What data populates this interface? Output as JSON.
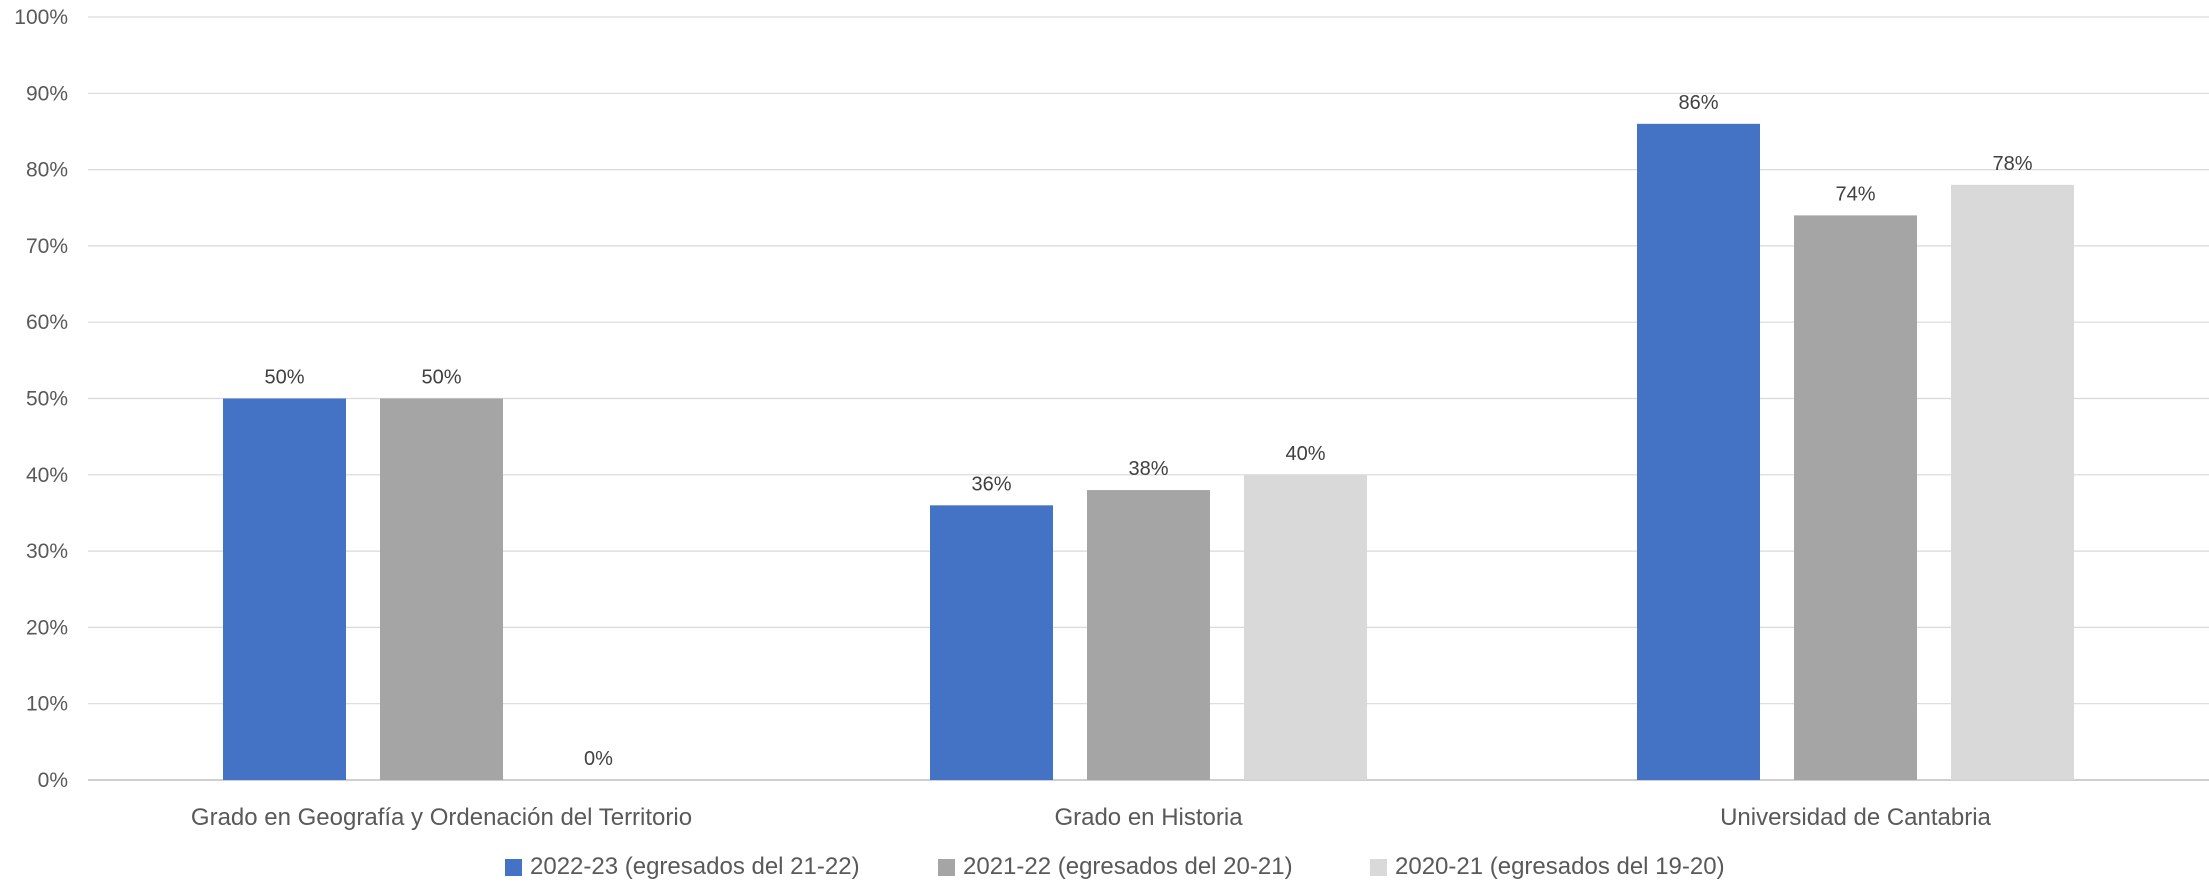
{
  "chart_data": {
    "type": "bar",
    "categories": [
      "Grado en Geografía y Ordenación del Territorio",
      "Grado en Historia",
      "Universidad de Cantabria"
    ],
    "series": [
      {
        "name": "2022-23 (egresados del 21-22)",
        "color": "#4472C4",
        "values": [
          50,
          36,
          86
        ]
      },
      {
        "name": "2021-22 (egresados del 20-21)",
        "color": "#A5A5A5",
        "values": [
          50,
          38,
          74
        ]
      },
      {
        "name": "2020-21 (egresados del 19-20)",
        "color": "#D9D9D9",
        "values": [
          0,
          40,
          78
        ]
      }
    ],
    "data_labels": [
      [
        "50%",
        "36%",
        "86%"
      ],
      [
        "50%",
        "38%",
        "74%"
      ],
      [
        "0%",
        "40%",
        "78%"
      ]
    ],
    "ylim": [
      0,
      100
    ],
    "yticks": [
      0,
      10,
      20,
      30,
      40,
      50,
      60,
      70,
      80,
      90,
      100
    ],
    "ytick_labels": [
      "0%",
      "10%",
      "20%",
      "30%",
      "40%",
      "50%",
      "60%",
      "70%",
      "80%",
      "90%",
      "100%"
    ],
    "grid": true,
    "legend_position": "bottom"
  }
}
